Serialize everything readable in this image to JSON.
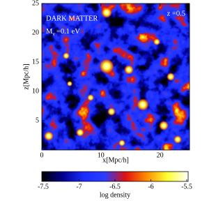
{
  "chart_data": {
    "type": "density_map",
    "title": "DARK MATTER",
    "mass_label": {
      "symbol": "M",
      "subscript": "ν",
      "text": "=0.1 eV"
    },
    "redshift_label": "z =0.5",
    "x_label": "x[Mpc/h]",
    "y_label": "z[Mpc/h]",
    "xlim": [
      0,
      25
    ],
    "ylim": [
      0,
      25
    ],
    "xticks": [
      0,
      10,
      20
    ],
    "yticks": [
      5,
      10,
      15,
      20,
      25
    ],
    "colorbar": {
      "label": "log density",
      "lim": [
        -7.5,
        -5.5
      ],
      "ticks": [
        -7.5,
        -7,
        -6.5,
        -6,
        -5.5
      ],
      "colormap": [
        "#000000",
        "#00008c",
        "#1a2cff",
        "#2a3cff",
        "#e01010",
        "#ff8a00",
        "#ffff30",
        "#ffffff"
      ]
    }
  }
}
